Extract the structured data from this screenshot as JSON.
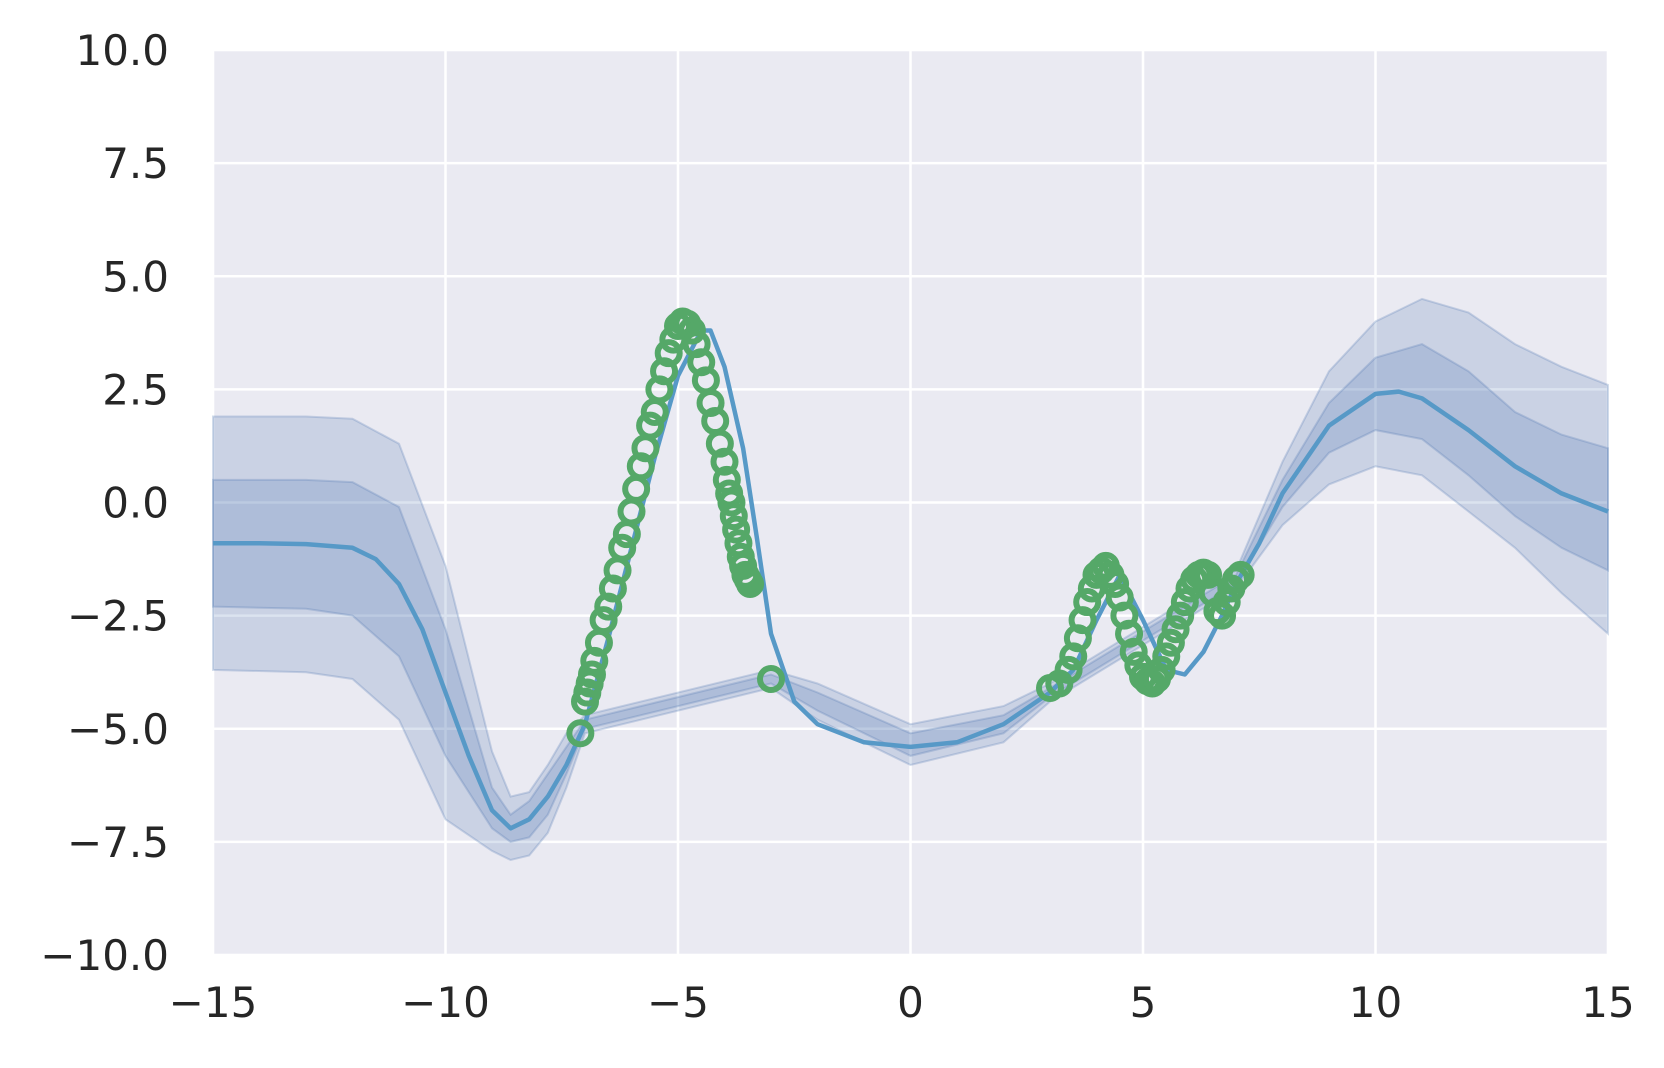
{
  "chart_data": {
    "type": "line",
    "title": "",
    "xlabel": "",
    "ylabel": "",
    "xlim": [
      -15,
      15
    ],
    "ylim": [
      -10,
      10
    ],
    "grid": true,
    "x_ticks": [
      -15,
      -10,
      -5,
      0,
      5,
      10,
      15
    ],
    "x_tick_labels": [
      "−15",
      "−10",
      "−5",
      "0",
      "5",
      "10",
      "15"
    ],
    "y_ticks": [
      -10,
      -7.5,
      -5,
      -2.5,
      0,
      2.5,
      5,
      7.5,
      10
    ],
    "y_tick_labels": [
      "−10.0",
      "−7.5",
      "−5.0",
      "−2.5",
      "0.0",
      "2.5",
      "5.0",
      "7.5",
      "10.0"
    ],
    "colors": {
      "background": "#eaeaf2",
      "grid": "#ffffff",
      "mean": "#5799c7",
      "band": "#4c72b0",
      "points": "#55a868"
    },
    "mean": {
      "x": [
        -15,
        -14,
        -13,
        -12,
        -11.5,
        -11,
        -10.5,
        -10,
        -9.5,
        -9,
        -8.6,
        -8.2,
        -7.8,
        -7.4,
        -7,
        -6.5,
        -6,
        -5.5,
        -5,
        -4.5,
        -4.3,
        -4,
        -3.6,
        -3.3,
        -3,
        -2.5,
        -2,
        -1,
        0,
        1,
        2,
        3,
        3.5,
        4,
        4.5,
        5,
        5.5,
        5.9,
        6.3,
        6.7,
        7,
        7.5,
        8,
        9,
        10,
        10.5,
        11,
        12,
        13,
        14,
        15
      ],
      "y": [
        -0.9,
        -0.9,
        -0.92,
        -1.0,
        -1.25,
        -1.8,
        -2.8,
        -4.2,
        -5.6,
        -6.8,
        -7.2,
        -7.0,
        -6.5,
        -5.8,
        -4.9,
        -3.0,
        -1.0,
        1.0,
        2.8,
        3.8,
        3.8,
        3.0,
        1.2,
        -0.8,
        -2.9,
        -4.4,
        -4.9,
        -5.3,
        -5.4,
        -5.3,
        -4.9,
        -4.2,
        -3.7,
        -2.6,
        -1.6,
        -2.6,
        -3.7,
        -3.8,
        -3.3,
        -2.5,
        -1.8,
        -0.9,
        0.2,
        1.7,
        2.4,
        2.45,
        2.3,
        1.6,
        0.8,
        0.2,
        -0.2
      ]
    },
    "band_1sigma": {
      "x": [
        -15,
        -13,
        -12,
        -11,
        -10,
        -9,
        -8.6,
        -8.2,
        -7.8,
        -7.4,
        -7,
        -3,
        -2,
        0,
        2,
        3,
        7,
        8,
        9,
        10,
        11,
        12,
        13,
        14,
        15
      ],
      "lower": [
        -2.3,
        -2.35,
        -2.5,
        -3.4,
        -5.6,
        -7.2,
        -7.5,
        -7.4,
        -6.9,
        -6.0,
        -5.0,
        -4.0,
        -4.6,
        -5.6,
        -5.1,
        -4.3,
        -1.8,
        -0.1,
        1.1,
        1.6,
        1.4,
        0.6,
        -0.3,
        -1.0,
        -1.5
      ],
      "upper": [
        0.5,
        0.5,
        0.45,
        -0.1,
        -2.8,
        -6.3,
        -6.9,
        -6.6,
        -6.0,
        -5.4,
        -4.8,
        -3.8,
        -4.2,
        -5.1,
        -4.7,
        -4.1,
        -1.6,
        0.5,
        2.2,
        3.2,
        3.5,
        2.9,
        2.0,
        1.5,
        1.2
      ]
    },
    "band_2sigma": {
      "x": [
        -15,
        -13,
        -12,
        -11,
        -10,
        -9,
        -8.6,
        -8.2,
        -7.8,
        -7.4,
        -7,
        -3,
        -2,
        0,
        2,
        3,
        7,
        8,
        9,
        10,
        11,
        12,
        13,
        14,
        15
      ],
      "lower": [
        -3.7,
        -3.75,
        -3.9,
        -4.8,
        -7.0,
        -7.7,
        -7.9,
        -7.8,
        -7.3,
        -6.3,
        -5.1,
        -4.1,
        -4.8,
        -5.8,
        -5.3,
        -4.4,
        -1.9,
        -0.5,
        0.4,
        0.8,
        0.6,
        -0.2,
        -1.0,
        -2.0,
        -2.9
      ],
      "upper": [
        1.9,
        1.9,
        1.85,
        1.3,
        -1.4,
        -5.5,
        -6.5,
        -6.4,
        -5.8,
        -5.1,
        -4.7,
        -3.7,
        -4.0,
        -4.9,
        -4.5,
        -4.0,
        -1.5,
        0.9,
        2.9,
        4.0,
        4.5,
        4.2,
        3.5,
        3.0,
        2.6
      ]
    },
    "observations": {
      "name": "",
      "x": [
        -7.1,
        -7.0,
        -6.95,
        -6.9,
        -6.85,
        -6.8,
        -6.7,
        -6.6,
        -6.5,
        -6.4,
        -6.3,
        -6.2,
        -6.1,
        -6.0,
        -5.9,
        -5.8,
        -5.7,
        -5.6,
        -5.5,
        -5.4,
        -5.3,
        -5.2,
        -5.1,
        -5.0,
        -4.9,
        -4.8,
        -4.7,
        -4.6,
        -4.5,
        -4.4,
        -4.3,
        -4.2,
        -4.1,
        -4.0,
        -3.95,
        -3.9,
        -3.85,
        -3.8,
        -3.75,
        -3.7,
        -3.65,
        -3.6,
        -3.55,
        -3.5,
        -3.45,
        -3.0,
        3.0,
        3.2,
        3.4,
        3.5,
        3.6,
        3.7,
        3.8,
        3.9,
        4.0,
        4.1,
        4.2,
        4.3,
        4.4,
        4.5,
        4.6,
        4.7,
        4.8,
        4.9,
        5.0,
        5.1,
        5.2,
        5.3,
        5.4,
        5.5,
        5.6,
        5.7,
        5.8,
        5.9,
        6.0,
        6.1,
        6.2,
        6.3,
        6.4,
        6.5,
        6.6,
        6.7,
        6.8,
        6.9,
        7.0,
        7.1
      ],
      "y": [
        -5.1,
        -4.4,
        -4.2,
        -4.0,
        -3.8,
        -3.5,
        -3.1,
        -2.6,
        -2.3,
        -1.9,
        -1.5,
        -1.0,
        -0.7,
        -0.2,
        0.3,
        0.8,
        1.2,
        1.7,
        2.0,
        2.5,
        2.9,
        3.3,
        3.6,
        3.9,
        4.0,
        3.95,
        3.8,
        3.5,
        3.1,
        2.7,
        2.2,
        1.8,
        1.3,
        0.9,
        0.5,
        0.2,
        0.0,
        -0.3,
        -0.6,
        -0.9,
        -1.2,
        -1.4,
        -1.6,
        -1.7,
        -1.8,
        -3.9,
        -4.1,
        -4.0,
        -3.7,
        -3.4,
        -3.0,
        -2.6,
        -2.2,
        -1.9,
        -1.6,
        -1.5,
        -1.4,
        -1.6,
        -1.8,
        -2.1,
        -2.5,
        -2.9,
        -3.3,
        -3.6,
        -3.85,
        -3.95,
        -4.0,
        -3.9,
        -3.7,
        -3.4,
        -3.1,
        -2.8,
        -2.5,
        -2.2,
        -1.9,
        -1.7,
        -1.6,
        -1.55,
        -1.6,
        -2.0,
        -2.4,
        -2.5,
        -2.2,
        -1.9,
        -1.7,
        -1.6
      ]
    }
  }
}
